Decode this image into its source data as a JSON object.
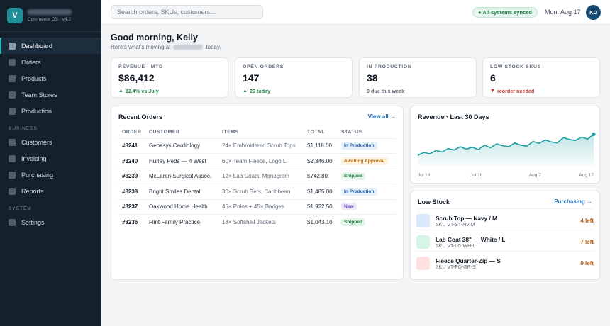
{
  "brand": {
    "logo_letter": "V",
    "subtitle": "Commerce OS · v4.2"
  },
  "sidebar": {
    "main_items": [
      {
        "label": "Dashboard",
        "active": true
      },
      {
        "label": "Orders"
      },
      {
        "label": "Products"
      },
      {
        "label": "Team Stores"
      },
      {
        "label": "Production"
      }
    ],
    "business_label": "BUSINESS",
    "business_items": [
      {
        "label": "Customers"
      },
      {
        "label": "Invoicing"
      },
      {
        "label": "Purchasing"
      },
      {
        "label": "Reports"
      }
    ],
    "system_label": "SYSTEM",
    "system_items": [
      {
        "label": "Settings"
      }
    ]
  },
  "header": {
    "search_placeholder": "Search orders, SKUs, customers...",
    "sync_status": "● All systems synced",
    "date": "Mon, Aug 17",
    "avatar_initials": "KD"
  },
  "greeting": {
    "title": "Good morning, Kelly",
    "subline_prefix": "Here's what's moving at",
    "subline_suffix": "today."
  },
  "kpis": [
    {
      "label": "REVENUE · MTD",
      "value": "$86,412",
      "delta": "12.4% vs July",
      "trend": "up",
      "arrow": "▲"
    },
    {
      "label": "OPEN ORDERS",
      "value": "147",
      "delta": "23 today",
      "trend": "up",
      "arrow": "▲"
    },
    {
      "label": "IN PRODUCTION",
      "value": "38",
      "delta": "9 due this week",
      "trend": "neutral",
      "arrow": ""
    },
    {
      "label": "LOW STOCK SKUS",
      "value": "6",
      "delta": "reorder needed",
      "trend": "down",
      "arrow": "▼"
    }
  ],
  "orders": {
    "title": "Recent Orders",
    "link": "View all →",
    "columns": [
      "ORDER",
      "CUSTOMER",
      "ITEMS",
      "TOTAL",
      "STATUS"
    ],
    "rows": [
      {
        "order": "#8241",
        "customer": "Genesys Cardiology",
        "items": "24× Embroidered Scrub Tops",
        "total": "$1,118.00",
        "status": "In Production",
        "status_kind": "production"
      },
      {
        "order": "#8240",
        "customer": "Hurley Peds — 4 West",
        "items": "60× Team Fleece, Logo L",
        "total": "$2,346.00",
        "status": "Awaiting Approval",
        "status_kind": "awaiting"
      },
      {
        "order": "#8239",
        "customer": "McLaren Surgical Assoc.",
        "items": "12× Lab Coats, Monogram",
        "total": "$742.80",
        "status": "Shipped",
        "status_kind": "shipped"
      },
      {
        "order": "#8238",
        "customer": "Bright Smiles Dental",
        "items": "30× Scrub Sets, Caribbean",
        "total": "$1,485.00",
        "status": "In Production",
        "status_kind": "production"
      },
      {
        "order": "#8237",
        "customer": "Oakwood Home Health",
        "items": "45× Polos + 45× Badges",
        "total": "$1,922.50",
        "status": "New",
        "status_kind": "new"
      },
      {
        "order": "#8236",
        "customer": "Flint Family Practice",
        "items": "18× Softshell Jackets",
        "total": "$1,043.10",
        "status": "Shipped",
        "status_kind": "shipped"
      }
    ]
  },
  "status_colors": {
    "production": {
      "bg": "#e6f0fb",
      "fg": "#1f5fa6"
    },
    "awaiting": {
      "bg": "#fdf3e1",
      "fg": "#b3650b"
    },
    "shipped": {
      "bg": "#e4f6ec",
      "fg": "#1f7f47"
    },
    "new": {
      "bg": "#efe9fb",
      "fg": "#6a3fb8"
    }
  },
  "chart_data": {
    "type": "area",
    "title": "Revenue · Last 30 Days",
    "x_tick_labels": [
      "Jul 18",
      "Jul 28",
      "Aug 7",
      "Aug 17"
    ],
    "values": [
      2.2,
      2.8,
      2.5,
      3.2,
      2.9,
      3.6,
      3.3,
      4.0,
      3.5,
      3.9,
      3.4,
      4.3,
      3.8,
      4.6,
      4.2,
      4.0,
      4.8,
      4.3,
      4.1,
      5.1,
      4.7,
      5.4,
      5.0,
      4.8,
      5.9,
      5.5,
      5.3,
      6.0,
      5.6,
      6.6
    ],
    "ylim": [
      0,
      8
    ],
    "color": "#1c9fa3"
  },
  "low_stock": {
    "title": "Low Stock",
    "link": "Purchasing →",
    "items": [
      {
        "name": "Scrub Top — Navy / M",
        "sku": "SKU VT-ST-NV-M",
        "left": "4 left",
        "swatch": "#dbe8fb"
      },
      {
        "name": "Lab Coat 38\" — White / L",
        "sku": "SKU VT-LC-WH-L",
        "left": "7 left",
        "swatch": "#d5f6e6"
      },
      {
        "name": "Fleece Quarter-Zip — S",
        "sku": "SKU VT-FQ-GR-S",
        "left": "9 left",
        "swatch": "#fde0e0"
      }
    ]
  }
}
